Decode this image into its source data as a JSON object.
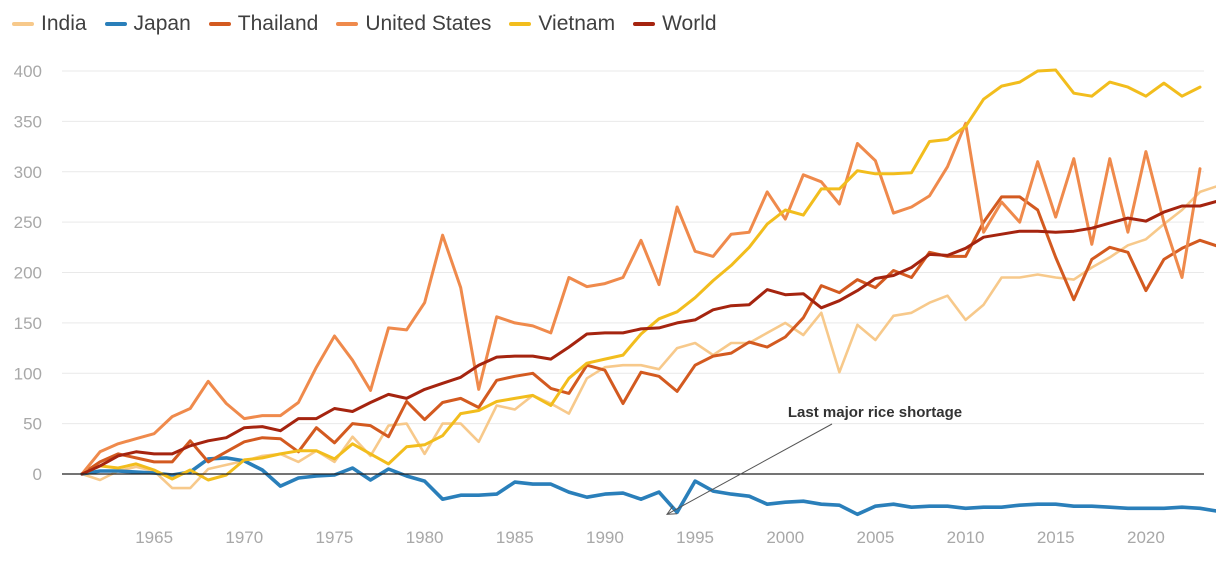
{
  "chart_data": {
    "type": "line",
    "title": "",
    "xlabel": "",
    "ylabel": "",
    "xlim": [
      1961,
      2023
    ],
    "ylim": [
      -40,
      400
    ],
    "yticks": [
      0,
      50,
      100,
      150,
      200,
      250,
      300,
      350,
      400
    ],
    "xticks": [
      1965,
      1970,
      1975,
      1980,
      1985,
      1990,
      1995,
      2000,
      2005,
      2010,
      2015,
      2020
    ],
    "legend_position": "top-left",
    "annotations": [
      {
        "text": "Last major rice shortage",
        "x": 1993,
        "y": -38
      }
    ],
    "series": [
      {
        "name": "India",
        "color": "#f7c98b",
        "startYear": 1961,
        "values": [
          0,
          -6,
          3,
          7,
          3,
          -14,
          -14,
          5,
          9,
          13,
          18,
          20,
          12,
          23,
          12,
          37,
          18,
          48,
          50,
          20,
          50,
          50,
          32,
          68,
          64,
          78,
          70,
          60,
          95,
          106,
          108,
          108,
          104,
          125,
          130,
          118,
          130,
          130,
          140,
          150,
          138,
          160,
          101,
          148,
          133,
          157,
          160,
          170,
          177,
          153,
          168,
          195,
          195,
          198,
          195,
          193,
          205,
          215,
          227,
          233,
          248,
          262,
          280,
          286
        ]
      },
      {
        "name": "Japan",
        "color": "#2a7fba",
        "startYear": 1961,
        "values": [
          0,
          3,
          3,
          2,
          1,
          -1,
          2,
          15,
          16,
          13,
          4,
          -12,
          -4,
          -2,
          -1,
          6,
          -6,
          5,
          -2,
          -7,
          -25,
          -21,
          -21,
          -20,
          -8,
          -10,
          -10,
          -18,
          -23,
          -20,
          -19,
          -25,
          -18,
          -38,
          -7,
          -17,
          -20,
          -22,
          -30,
          -28,
          -27,
          -30,
          -31,
          -40,
          -32,
          -30,
          -33,
          -32,
          -32,
          -34,
          -33,
          -33,
          -31,
          -30,
          -30,
          -32,
          -32,
          -33,
          -34,
          -34,
          -34,
          -33,
          -34,
          -37
        ]
      },
      {
        "name": "Thailand",
        "color": "#d35a20",
        "startYear": 1961,
        "values": [
          0,
          12,
          20,
          16,
          12,
          12,
          33,
          12,
          22,
          32,
          36,
          35,
          22,
          46,
          31,
          50,
          48,
          37,
          72,
          54,
          71,
          75,
          66,
          93,
          97,
          100,
          85,
          80,
          108,
          103,
          70,
          101,
          97,
          82,
          108,
          117,
          120,
          131,
          126,
          136,
          155,
          187,
          180,
          193,
          185,
          202,
          195,
          220,
          216,
          216,
          250,
          275,
          275,
          262,
          215,
          173,
          213,
          225,
          220,
          182,
          213,
          224,
          232,
          226
        ]
      },
      {
        "name": "United States",
        "color": "#ef8a4c",
        "startYear": 1961,
        "values": [
          0,
          22,
          30,
          35,
          40,
          57,
          65,
          92,
          70,
          55,
          58,
          58,
          71,
          106,
          137,
          113,
          83,
          145,
          143,
          170,
          237,
          185,
          84,
          156,
          150,
          147,
          140,
          195,
          186,
          189,
          195,
          232,
          188,
          265,
          221,
          216,
          238,
          240,
          280,
          253,
          297,
          290,
          268,
          328,
          311,
          259,
          265,
          276,
          305,
          348,
          240,
          270,
          250,
          310,
          255,
          313,
          228,
          313,
          240,
          320,
          250,
          195,
          303
        ]
      },
      {
        "name": "Vietnam",
        "color": "#f2bd1d",
        "startYear": 1961,
        "values": [
          0,
          8,
          6,
          10,
          4,
          -5,
          4,
          -6,
          -1,
          14,
          16,
          20,
          23,
          23,
          15,
          30,
          20,
          10,
          27,
          29,
          38,
          60,
          63,
          72,
          75,
          78,
          68,
          95,
          110,
          114,
          118,
          139,
          154,
          161,
          175,
          192,
          207,
          225,
          248,
          262,
          257,
          283,
          283,
          301,
          298,
          298,
          299,
          330,
          332,
          345,
          372,
          385,
          389,
          400,
          401,
          378,
          375,
          389,
          384,
          375,
          388,
          375,
          384
        ]
      },
      {
        "name": "World",
        "color": "#a5240f",
        "startYear": 1961,
        "values": [
          0,
          8,
          18,
          22,
          20,
          20,
          28,
          33,
          36,
          46,
          47,
          43,
          55,
          55,
          65,
          62,
          71,
          79,
          75,
          84,
          90,
          96,
          108,
          116,
          117,
          117,
          114,
          126,
          139,
          140,
          140,
          144,
          145,
          150,
          153,
          163,
          167,
          168,
          183,
          178,
          179,
          165,
          172,
          182,
          194,
          197,
          205,
          218,
          217,
          224,
          235,
          238,
          241,
          241,
          240,
          241,
          244,
          249,
          254,
          251,
          260,
          266,
          266,
          271
        ]
      }
    ]
  }
}
